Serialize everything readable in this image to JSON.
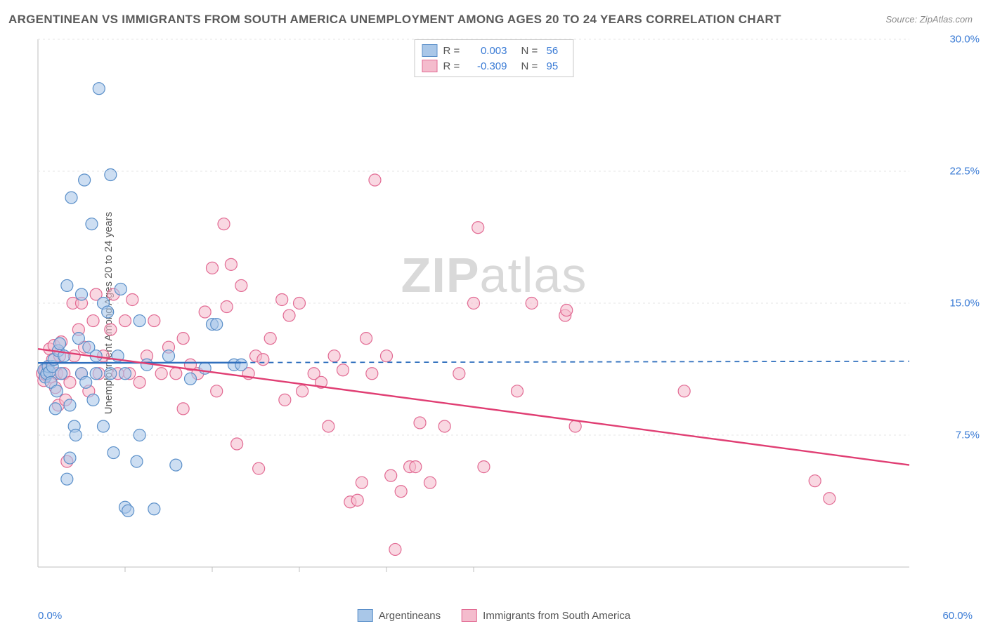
{
  "title": "ARGENTINEAN VS IMMIGRANTS FROM SOUTH AMERICA UNEMPLOYMENT AMONG AGES 20 TO 24 YEARS CORRELATION CHART",
  "source": "Source: ZipAtlas.com",
  "ylabel": "Unemployment Among Ages 20 to 24 years",
  "watermark_bold": "ZIP",
  "watermark_light": "atlas",
  "x_axis": {
    "min_label": "0.0%",
    "max_label": "60.0%",
    "min": 0.0,
    "max": 60.0,
    "ticks_minor": [
      6,
      12,
      18,
      24,
      30
    ]
  },
  "y_axis": {
    "min": 0.0,
    "max": 30.0,
    "ticks": [
      7.5,
      15.0,
      22.5,
      30.0
    ],
    "tick_labels": [
      "7.5%",
      "15.0%",
      "22.5%",
      "30.0%"
    ]
  },
  "grid_color": "#e5e5e5",
  "axis_color": "#bfbfbf",
  "background_color": "#ffffff",
  "series": {
    "a": {
      "label": "Argentineans",
      "fill": "#a9c7e8",
      "stroke": "#5a8fc9",
      "line_color": "#2f6fbd",
      "R": "0.003",
      "N": "56",
      "trend": {
        "y_at_xmin": 11.6,
        "y_at_xmax": 11.7,
        "solid_until_x": 14
      },
      "points": [
        [
          0.4,
          11.2
        ],
        [
          0.5,
          10.8
        ],
        [
          0.6,
          11.0
        ],
        [
          0.7,
          11.4
        ],
        [
          0.8,
          11.1
        ],
        [
          0.9,
          10.5
        ],
        [
          1.0,
          11.4
        ],
        [
          1.1,
          11.8
        ],
        [
          1.2,
          9.0
        ],
        [
          1.3,
          10.0
        ],
        [
          1.4,
          12.3
        ],
        [
          1.5,
          12.7
        ],
        [
          1.6,
          11.0
        ],
        [
          1.8,
          12.0
        ],
        [
          2.0,
          5.0
        ],
        [
          2.0,
          16.0
        ],
        [
          2.2,
          9.2
        ],
        [
          2.2,
          6.2
        ],
        [
          2.3,
          21.0
        ],
        [
          2.5,
          8.0
        ],
        [
          2.6,
          7.5
        ],
        [
          2.8,
          13.0
        ],
        [
          3.0,
          15.5
        ],
        [
          3.0,
          11.0
        ],
        [
          3.2,
          22.0
        ],
        [
          3.3,
          10.5
        ],
        [
          3.5,
          12.5
        ],
        [
          3.7,
          19.5
        ],
        [
          3.8,
          9.5
        ],
        [
          4.0,
          12.0
        ],
        [
          4.0,
          11.0
        ],
        [
          4.2,
          27.2
        ],
        [
          4.5,
          15.0
        ],
        [
          4.5,
          8.0
        ],
        [
          4.8,
          14.5
        ],
        [
          5.0,
          11.0
        ],
        [
          5.0,
          22.3
        ],
        [
          5.2,
          6.5
        ],
        [
          5.5,
          12.0
        ],
        [
          5.7,
          15.8
        ],
        [
          6.0,
          3.4
        ],
        [
          6.0,
          11.0
        ],
        [
          6.2,
          3.2
        ],
        [
          6.8,
          6.0
        ],
        [
          7.0,
          7.5
        ],
        [
          7.0,
          14.0
        ],
        [
          7.5,
          11.5
        ],
        [
          8.0,
          3.3
        ],
        [
          9.0,
          12.0
        ],
        [
          9.5,
          5.8
        ],
        [
          10.5,
          10.7
        ],
        [
          11.5,
          11.3
        ],
        [
          12.0,
          13.8
        ],
        [
          12.3,
          13.8
        ],
        [
          13.5,
          11.5
        ],
        [
          14.0,
          11.5
        ]
      ]
    },
    "b": {
      "label": "Immigrants from South America",
      "fill": "#f4bccd",
      "stroke": "#e26a93",
      "line_color": "#e03e73",
      "R": "-0.309",
      "N": "95",
      "trend": {
        "y_at_xmin": 12.4,
        "y_at_xmax": 5.8,
        "solid_until_x": 60
      },
      "points": [
        [
          0.3,
          11.0
        ],
        [
          0.4,
          10.6
        ],
        [
          0.5,
          11.2
        ],
        [
          0.6,
          10.9
        ],
        [
          0.7,
          11.4
        ],
        [
          0.8,
          12.4
        ],
        [
          0.9,
          10.8
        ],
        [
          1.0,
          11.8
        ],
        [
          1.1,
          12.6
        ],
        [
          1.2,
          10.2
        ],
        [
          1.3,
          11.0
        ],
        [
          1.4,
          9.2
        ],
        [
          1.5,
          12.0
        ],
        [
          1.6,
          12.8
        ],
        [
          1.8,
          11.0
        ],
        [
          1.9,
          9.5
        ],
        [
          2.0,
          6.0
        ],
        [
          2.2,
          10.5
        ],
        [
          2.4,
          15.0
        ],
        [
          2.5,
          12.0
        ],
        [
          2.8,
          13.5
        ],
        [
          3.0,
          15.0
        ],
        [
          3.0,
          11.0
        ],
        [
          3.2,
          12.5
        ],
        [
          3.5,
          10.0
        ],
        [
          3.8,
          14.0
        ],
        [
          4.0,
          15.5
        ],
        [
          4.2,
          11.0
        ],
        [
          4.5,
          12.0
        ],
        [
          5.0,
          13.5
        ],
        [
          5.2,
          15.5
        ],
        [
          5.5,
          11.0
        ],
        [
          6.0,
          14.0
        ],
        [
          6.3,
          11.0
        ],
        [
          6.5,
          15.2
        ],
        [
          7.0,
          10.5
        ],
        [
          7.5,
          12.0
        ],
        [
          8.0,
          14.0
        ],
        [
          8.5,
          11.0
        ],
        [
          9.0,
          12.5
        ],
        [
          9.5,
          11.0
        ],
        [
          10.0,
          13.0
        ],
        [
          10.0,
          9.0
        ],
        [
          10.5,
          11.5
        ],
        [
          11.0,
          11.0
        ],
        [
          11.5,
          14.5
        ],
        [
          12.0,
          17.0
        ],
        [
          12.3,
          10.0
        ],
        [
          12.8,
          19.5
        ],
        [
          13.0,
          14.8
        ],
        [
          13.3,
          17.2
        ],
        [
          13.7,
          7.0
        ],
        [
          14.0,
          16.0
        ],
        [
          14.5,
          11.0
        ],
        [
          15.0,
          12.0
        ],
        [
          15.2,
          5.6
        ],
        [
          15.5,
          11.8
        ],
        [
          16.0,
          13.0
        ],
        [
          16.8,
          15.2
        ],
        [
          17.0,
          9.5
        ],
        [
          17.3,
          14.3
        ],
        [
          18.0,
          15.0
        ],
        [
          18.2,
          10.0
        ],
        [
          19.0,
          11.0
        ],
        [
          19.5,
          10.5
        ],
        [
          20.0,
          8.0
        ],
        [
          20.4,
          12.0
        ],
        [
          21.0,
          11.2
        ],
        [
          21.5,
          3.7
        ],
        [
          22.0,
          3.8
        ],
        [
          22.3,
          4.8
        ],
        [
          22.6,
          13.0
        ],
        [
          23.0,
          11.0
        ],
        [
          23.2,
          22.0
        ],
        [
          24.0,
          12.0
        ],
        [
          24.3,
          5.2
        ],
        [
          24.6,
          1.0
        ],
        [
          25.0,
          4.3
        ],
        [
          25.6,
          5.7
        ],
        [
          26.0,
          5.7
        ],
        [
          26.3,
          8.2
        ],
        [
          27.0,
          4.8
        ],
        [
          28.0,
          8.0
        ],
        [
          29.0,
          11.0
        ],
        [
          30.0,
          15.0
        ],
        [
          30.3,
          19.3
        ],
        [
          30.7,
          5.7
        ],
        [
          33.0,
          10.0
        ],
        [
          34.0,
          15.0
        ],
        [
          36.3,
          14.3
        ],
        [
          36.4,
          14.6
        ],
        [
          37.0,
          8.0
        ],
        [
          44.5,
          10.0
        ],
        [
          53.5,
          4.9
        ],
        [
          54.5,
          3.9
        ]
      ]
    }
  },
  "marker_radius": 8.5,
  "marker_opacity": 0.58,
  "font_sizes": {
    "title": 17,
    "axis_label": 15,
    "tick": 15,
    "legend": 15,
    "watermark": 70
  }
}
